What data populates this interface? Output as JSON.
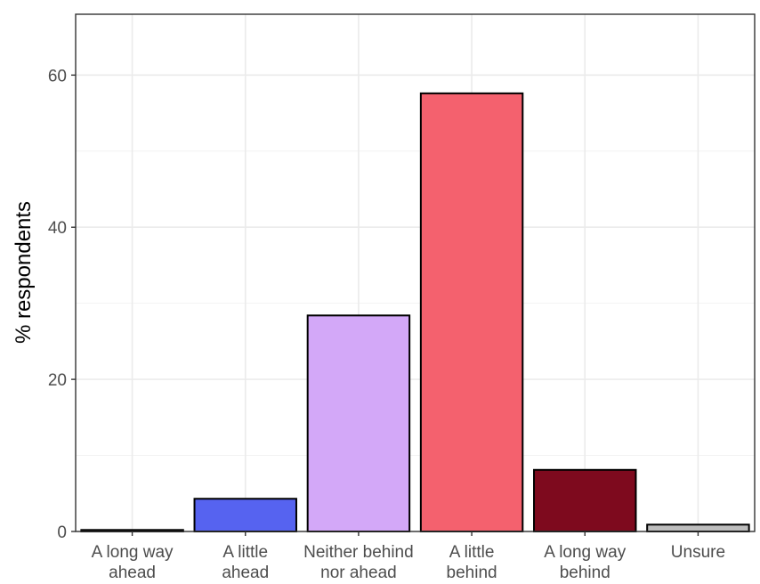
{
  "chart_data": {
    "type": "bar",
    "title": "",
    "xlabel": "",
    "ylabel": "% respondents",
    "ylim": [
      0,
      68
    ],
    "yticks": [
      0,
      20,
      40,
      60
    ],
    "grid": true,
    "categories": [
      [
        "A long way",
        "ahead"
      ],
      [
        "A little",
        "ahead"
      ],
      [
        "Neither behind",
        "nor ahead"
      ],
      [
        "A little",
        "behind"
      ],
      [
        "A long way",
        "behind"
      ],
      [
        "Unsure"
      ]
    ],
    "values": [
      0.2,
      4.3,
      28.4,
      57.6,
      8.1,
      0.9
    ],
    "colors": [
      "#1a1a8c",
      "#5663f0",
      "#d3a8f8",
      "#f4616e",
      "#7e0a1e",
      "#bdbdbd"
    ]
  }
}
